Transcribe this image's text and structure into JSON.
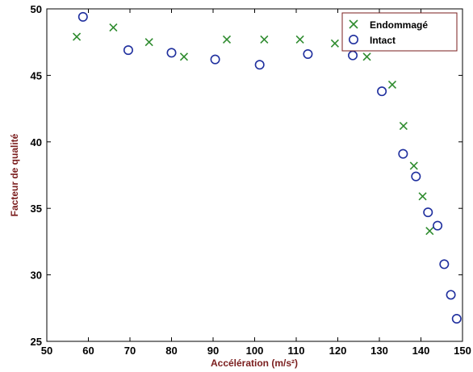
{
  "chart_data": {
    "type": "scatter",
    "xlabel": "Accélération (m/s²)",
    "ylabel": "Facteur de qualité",
    "xlim": [
      50,
      150
    ],
    "ylim": [
      25,
      50
    ],
    "xticks": [
      "50",
      "60",
      "70",
      "80",
      "90",
      "100",
      "110",
      "120",
      "130",
      "140",
      "150"
    ],
    "yticks": [
      "25",
      "30",
      "35",
      "40",
      "45",
      "50"
    ],
    "grid": false,
    "legend_position": "top-right",
    "series": [
      {
        "name": "Endommagé",
        "marker": "x",
        "color": "#2e8b2e",
        "points": [
          [
            57.2,
            47.9
          ],
          [
            66.0,
            48.6
          ],
          [
            74.6,
            47.5
          ],
          [
            83.0,
            46.4
          ],
          [
            93.3,
            47.7
          ],
          [
            102.3,
            47.7
          ],
          [
            110.9,
            47.7
          ],
          [
            119.3,
            47.4
          ],
          [
            127.0,
            46.4
          ],
          [
            133.1,
            44.3
          ],
          [
            135.8,
            41.2
          ],
          [
            138.3,
            38.2
          ],
          [
            140.4,
            35.9
          ],
          [
            142.1,
            33.3
          ]
        ]
      },
      {
        "name": "Intact",
        "marker": "o",
        "color": "#1f2f9e",
        "points": [
          [
            58.7,
            49.4
          ],
          [
            69.6,
            46.9
          ],
          [
            80.0,
            46.7
          ],
          [
            90.5,
            46.2
          ],
          [
            101.2,
            45.8
          ],
          [
            112.8,
            46.6
          ],
          [
            123.6,
            46.5
          ],
          [
            130.6,
            43.8
          ],
          [
            135.7,
            39.1
          ],
          [
            138.8,
            37.4
          ],
          [
            141.7,
            34.7
          ],
          [
            144.0,
            33.7
          ],
          [
            145.6,
            30.8
          ],
          [
            147.2,
            28.5
          ],
          [
            148.6,
            26.7
          ]
        ]
      }
    ]
  }
}
